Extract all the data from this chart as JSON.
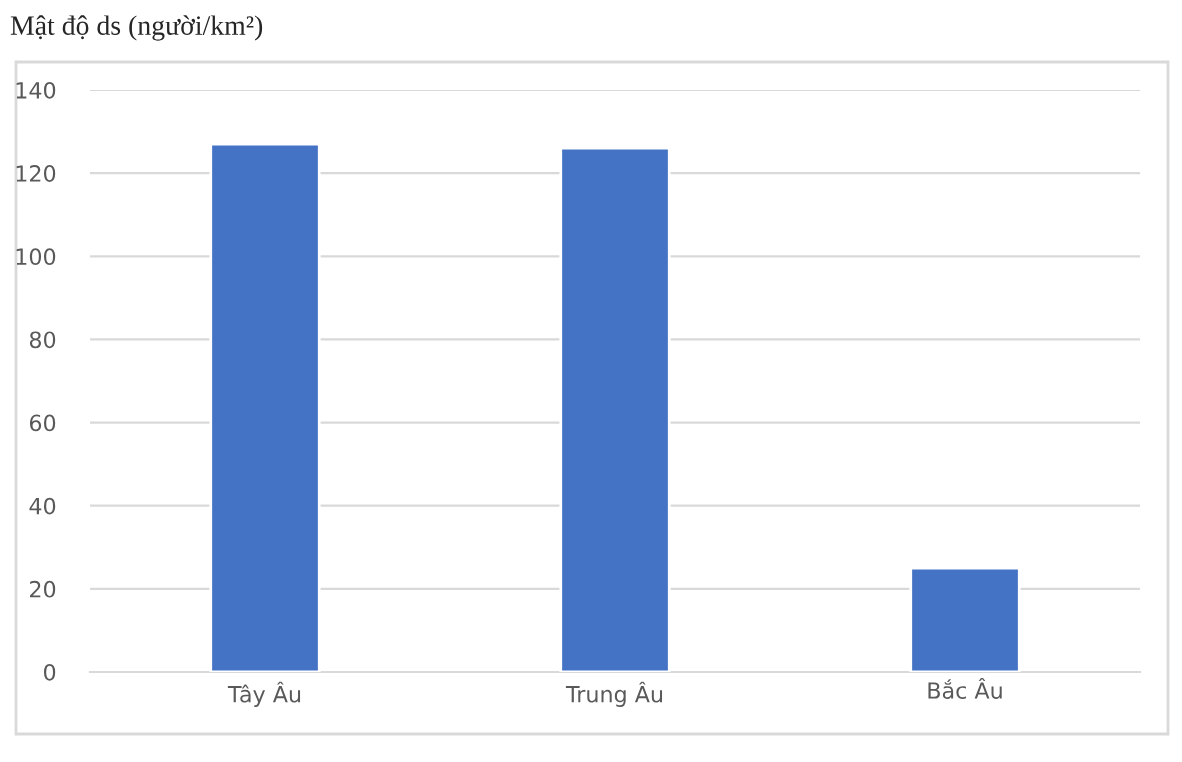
{
  "chart_data": {
    "type": "bar",
    "title": "Mật độ ds (người/km²)",
    "categories": [
      "Tây Âu",
      "Trung Âu",
      "Bắc Âu"
    ],
    "values": [
      127,
      126,
      25
    ],
    "color": "#4472c4",
    "ylim": [
      0,
      140
    ],
    "yticks": [
      0,
      20,
      40,
      60,
      80,
      100,
      120,
      140
    ],
    "grid": "y",
    "legend": false
  }
}
